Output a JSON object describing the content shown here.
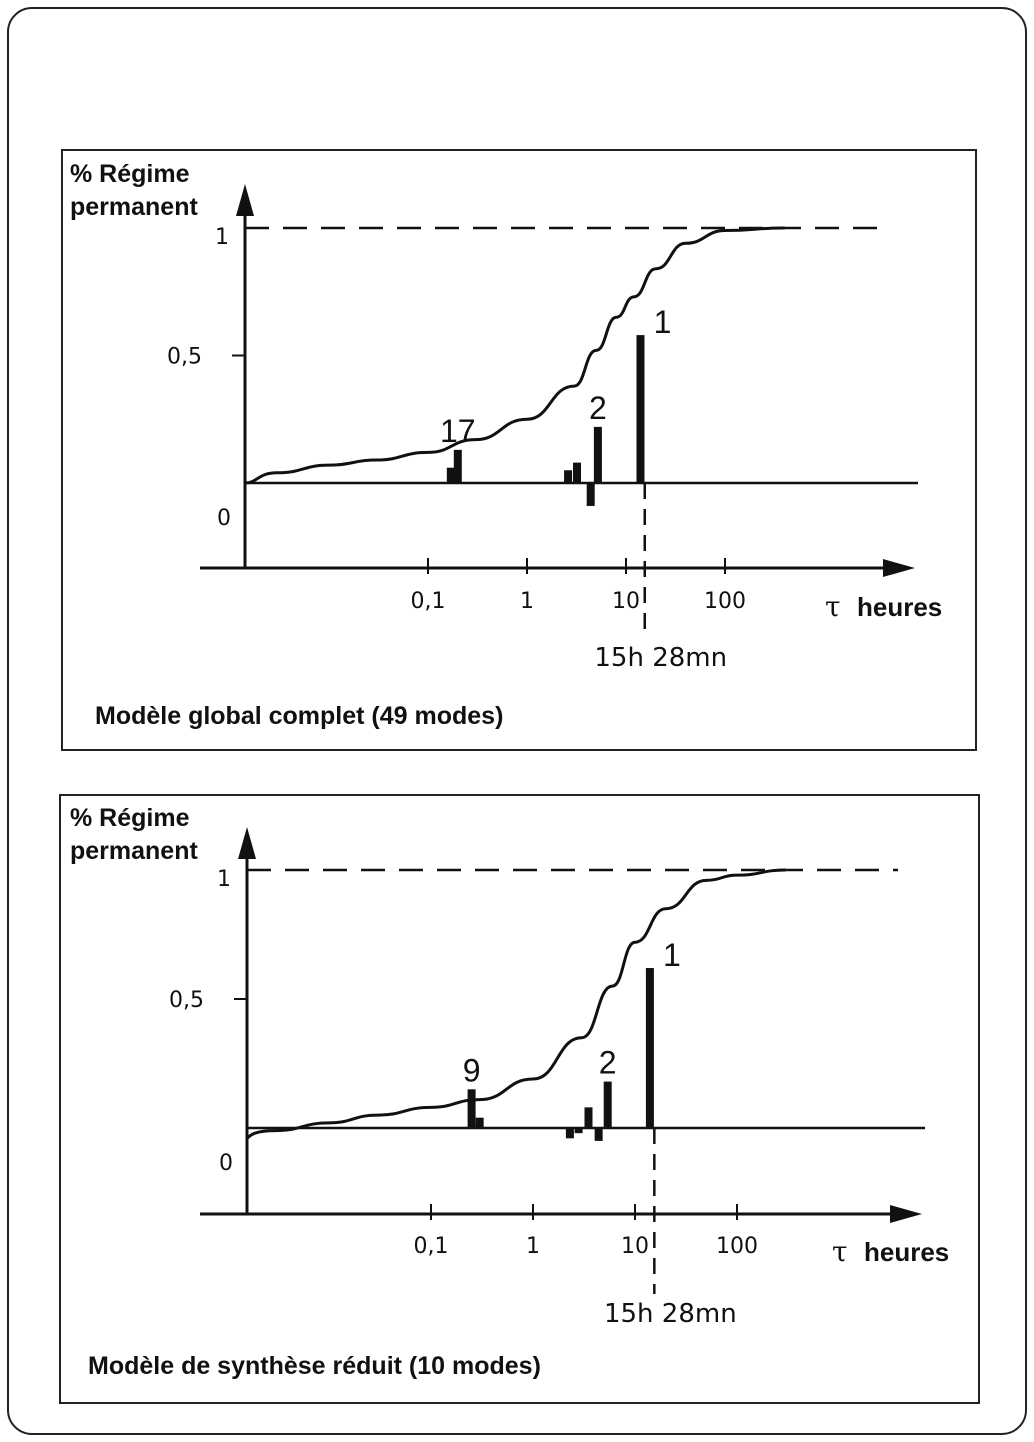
{
  "chart_data": [
    {
      "type": "line",
      "caption": "Modèle global complet (49 modes)",
      "ylabel": [
        "% Régime",
        "permanent"
      ],
      "xlabel_symbol": "τ",
      "xlabel": "heures",
      "x_scale": "log",
      "y_ticks": [
        {
          "value": 0,
          "label": "0"
        },
        {
          "value": 0.5,
          "label": "0,5"
        },
        {
          "value": 1,
          "label": "1"
        }
      ],
      "x_ticks": [
        {
          "value": 0.1,
          "label": "0,1"
        },
        {
          "value": 1,
          "label": "1"
        },
        {
          "value": 10,
          "label": "10"
        },
        {
          "value": 100,
          "label": "100"
        }
      ],
      "reference_line": {
        "y": 1,
        "style": "dashed"
      },
      "marker": {
        "x": 15.47,
        "label": "15h 28mn"
      },
      "curve": {
        "x": [
          0.0012,
          0.003,
          0.01,
          0.03,
          0.1,
          0.3,
          1,
          3,
          5,
          8,
          12,
          20,
          40,
          100,
          400
        ],
        "y": [
          0,
          0.04,
          0.07,
          0.09,
          0.12,
          0.17,
          0.25,
          0.38,
          0.52,
          0.65,
          0.73,
          0.84,
          0.94,
          0.99,
          1.0
        ]
      },
      "bars": [
        {
          "x": 0.17,
          "value": 0.06,
          "label": ""
        },
        {
          "x": 0.2,
          "value": 0.13,
          "label": "17"
        },
        {
          "x": 2.6,
          "value": 0.05,
          "label": ""
        },
        {
          "x": 3.2,
          "value": 0.08,
          "label": ""
        },
        {
          "x": 4.4,
          "value": -0.09,
          "label": ""
        },
        {
          "x": 5.2,
          "value": 0.22,
          "label": "2"
        },
        {
          "x": 14,
          "value": 0.58,
          "label": "1"
        }
      ]
    },
    {
      "type": "line",
      "caption": "Modèle de synthèse réduit (10 modes)",
      "ylabel": [
        "% Régime",
        "permanent"
      ],
      "xlabel_symbol": "τ",
      "xlabel": "heures",
      "x_scale": "log",
      "y_ticks": [
        {
          "value": 0,
          "label": "0"
        },
        {
          "value": 0.5,
          "label": "0,5"
        },
        {
          "value": 1,
          "label": "1"
        }
      ],
      "x_ticks": [
        {
          "value": 0.1,
          "label": "0,1"
        },
        {
          "value": 1,
          "label": "1"
        },
        {
          "value": 10,
          "label": "10"
        },
        {
          "value": 100,
          "label": "100"
        }
      ],
      "reference_line": {
        "y": 1,
        "style": "dashed"
      },
      "marker": {
        "x": 15.47,
        "label": "15h 28mn"
      },
      "curve": {
        "x": [
          0.0009,
          0.003,
          0.01,
          0.03,
          0.1,
          0.3,
          1,
          3,
          6,
          10,
          20,
          50,
          100,
          300
        ],
        "y": [
          -0.04,
          -0.01,
          0.02,
          0.05,
          0.08,
          0.11,
          0.19,
          0.35,
          0.55,
          0.72,
          0.85,
          0.96,
          0.98,
          1.0
        ]
      },
      "bars": [
        {
          "x": 0.25,
          "value": 0.15,
          "label": "9"
        },
        {
          "x": 0.3,
          "value": 0.04,
          "label": ""
        },
        {
          "x": 2.3,
          "value": -0.04,
          "label": ""
        },
        {
          "x": 2.8,
          "value": -0.02,
          "label": ""
        },
        {
          "x": 3.5,
          "value": 0.08,
          "label": ""
        },
        {
          "x": 4.4,
          "value": -0.05,
          "label": ""
        },
        {
          "x": 5.4,
          "value": 0.18,
          "label": "2"
        },
        {
          "x": 14,
          "value": 0.62,
          "label": "1"
        }
      ]
    }
  ]
}
